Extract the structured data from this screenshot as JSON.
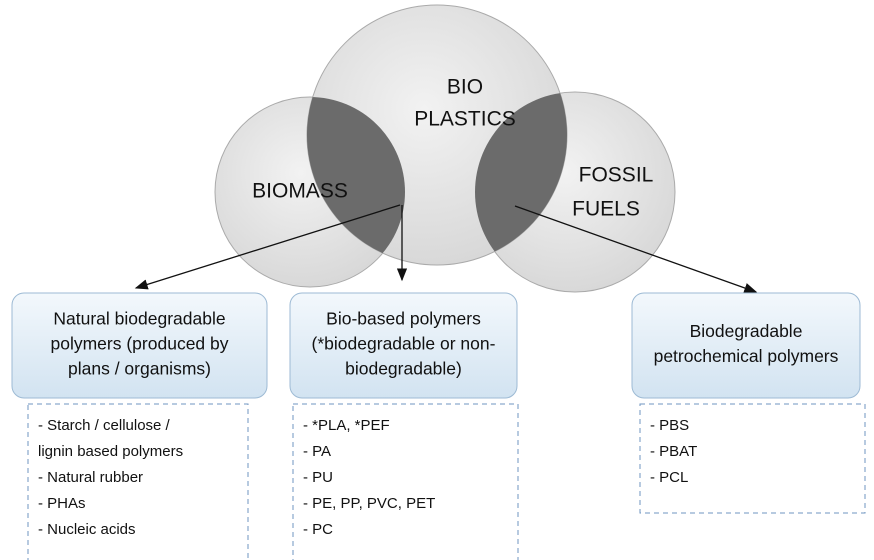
{
  "circles": [
    {
      "lines": [
        "BIOMASS"
      ]
    },
    {
      "lines": [
        "BIO",
        "PLASTICS"
      ]
    },
    {
      "lines": [
        "FOSSIL",
        "FUELS"
      ]
    }
  ],
  "boxes": [
    {
      "title": [
        "Natural biodegradable",
        "polymers (produced by",
        "plans / organisms)"
      ],
      "items": [
        "-  Starch  /  cellulose  /",
        "lignin based polymers",
        "- Natural rubber",
        "- PHAs",
        "- Nucleic acids"
      ]
    },
    {
      "title": [
        "Bio-based polymers",
        "(*biodegradable or non-",
        "biodegradable)"
      ],
      "items": [
        "- *PLA, *PEF",
        "- PA",
        "- PU",
        "- PE, PP, PVC, PET",
        "- PC"
      ]
    },
    {
      "title": [
        "Biodegradable",
        "petrochemical polymers"
      ],
      "items": [
        "- PBS",
        "- PBAT",
        "- PCL"
      ]
    }
  ]
}
